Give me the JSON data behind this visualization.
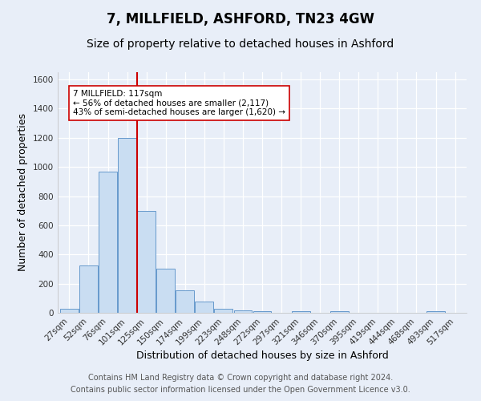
{
  "title": "7, MILLFIELD, ASHFORD, TN23 4GW",
  "subtitle": "Size of property relative to detached houses in Ashford",
  "xlabel": "Distribution of detached houses by size in Ashford",
  "ylabel": "Number of detached properties",
  "bar_labels": [
    "27sqm",
    "52sqm",
    "76sqm",
    "101sqm",
    "125sqm",
    "150sqm",
    "174sqm",
    "199sqm",
    "223sqm",
    "248sqm",
    "272sqm",
    "297sqm",
    "321sqm",
    "346sqm",
    "370sqm",
    "395sqm",
    "419sqm",
    "444sqm",
    "468sqm",
    "493sqm",
    "517sqm"
  ],
  "bar_values": [
    25,
    325,
    970,
    1200,
    700,
    305,
    155,
    75,
    30,
    18,
    10,
    0,
    10,
    0,
    12,
    0,
    0,
    0,
    0,
    10,
    0
  ],
  "bar_color": "#c9ddf2",
  "bar_edge_color": "#6699cc",
  "property_line_color": "#cc0000",
  "annotation_text": "7 MILLFIELD: 117sqm\n← 56% of detached houses are smaller (2,117)\n43% of semi-detached houses are larger (1,620) →",
  "annotation_box_color": "#ffffff",
  "annotation_box_edge": "#cc0000",
  "ylim": [
    0,
    1650
  ],
  "yticks": [
    0,
    200,
    400,
    600,
    800,
    1000,
    1200,
    1400,
    1600
  ],
  "footer1": "Contains HM Land Registry data © Crown copyright and database right 2024.",
  "footer2": "Contains public sector information licensed under the Open Government Licence v3.0.",
  "bg_color": "#e8eef8",
  "plot_bg_color": "#e8eef8",
  "grid_color": "#ffffff",
  "title_fontsize": 12,
  "subtitle_fontsize": 10,
  "xlabel_fontsize": 9,
  "ylabel_fontsize": 9,
  "tick_fontsize": 7.5,
  "footer_fontsize": 7
}
